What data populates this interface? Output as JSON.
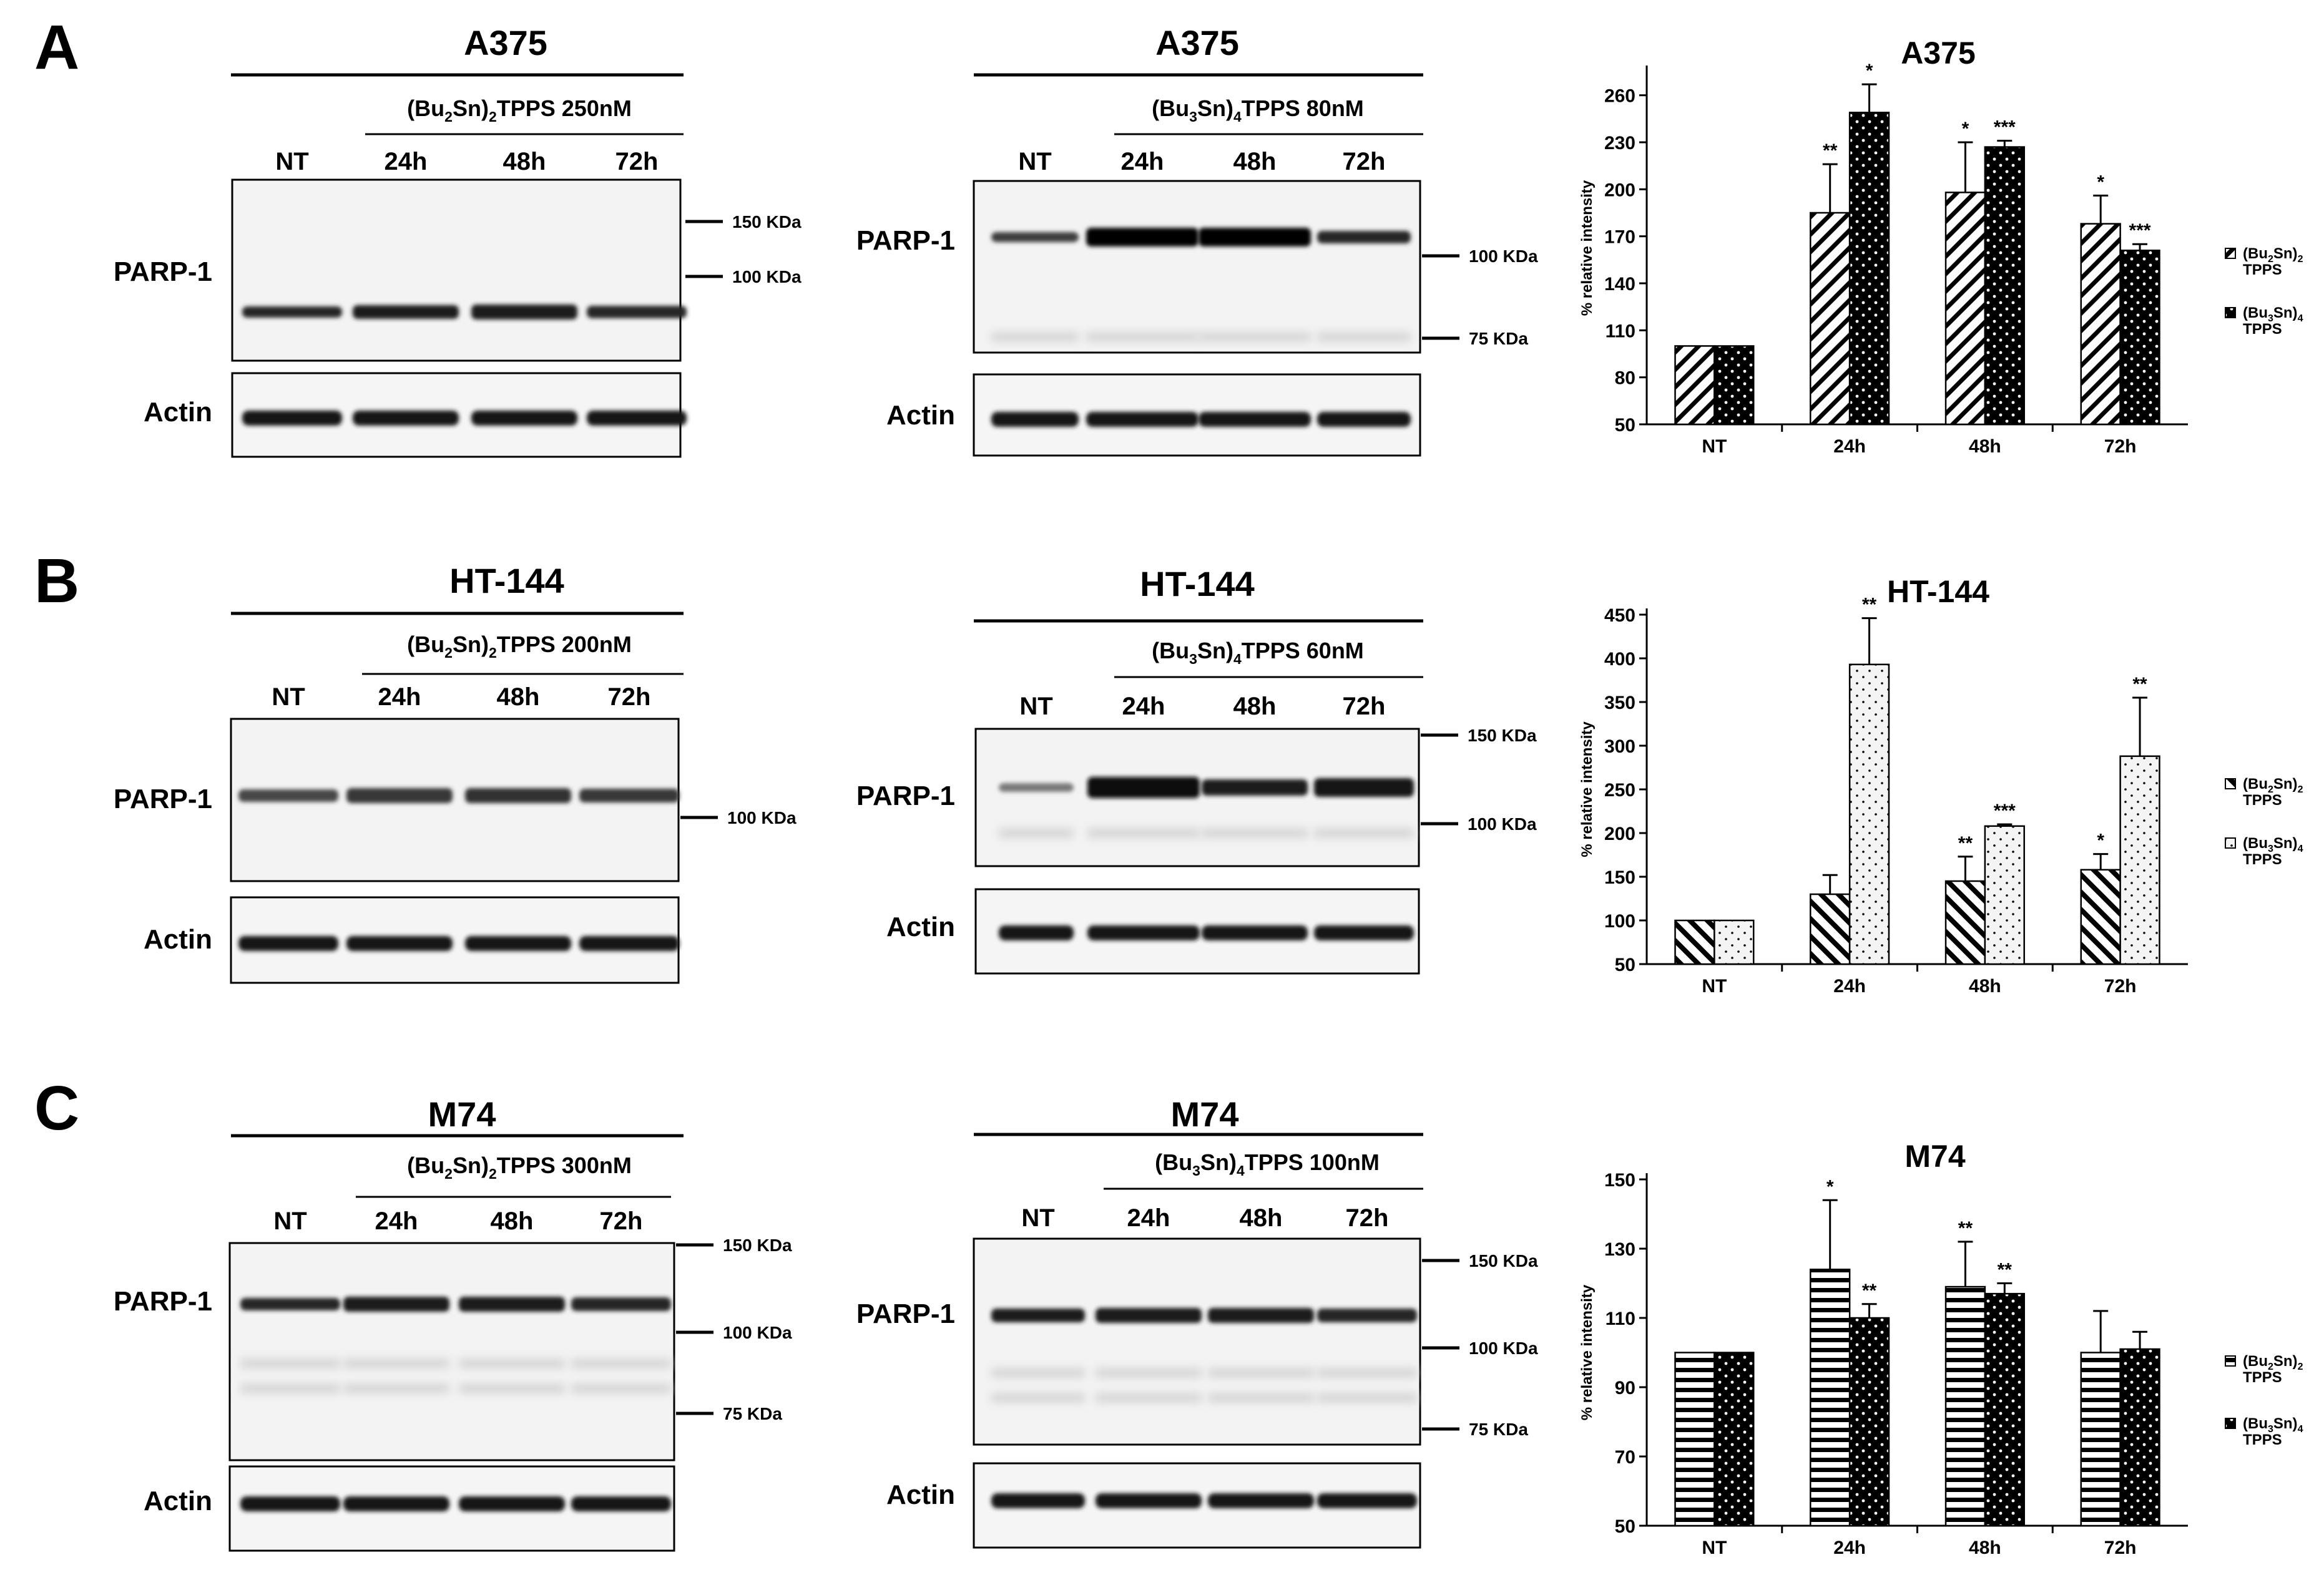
{
  "panel_letters": [
    "A",
    "B",
    "C"
  ],
  "kda": {
    "k150": "150 KDa",
    "k100": "100 KDa",
    "k75": "75 KDa"
  },
  "common": {
    "parp": "PARP-1",
    "actin": "Actin",
    "lanes": [
      "NT",
      "24h",
      "48h",
      "72h"
    ]
  },
  "blots": [
    {
      "title": "A375",
      "treatment_sub": [
        "(Bu",
        "2",
        "Sn)",
        "2",
        "TPPS 250nM"
      ]
    },
    {
      "title": "A375",
      "treatment_sub": [
        "(Bu",
        "3",
        "Sn)",
        "4",
        "TPPS 80nM"
      ]
    },
    {
      "title": "HT-144",
      "treatment_sub": [
        "(Bu",
        "2",
        "Sn)",
        "2",
        "TPPS 200nM"
      ]
    },
    {
      "title": "HT-144",
      "treatment_sub": [
        "(Bu",
        "3",
        "Sn)",
        "4",
        "TPPS 60nM"
      ]
    },
    {
      "title": "M74",
      "treatment_sub": [
        "(Bu",
        "2",
        "Sn)",
        "2",
        "TPPS 300nM"
      ]
    },
    {
      "title": "M74",
      "treatment_sub": [
        "(Bu",
        "3",
        "Sn)",
        "4",
        "TPPS 100nM"
      ]
    }
  ],
  "chart_data": [
    {
      "type": "bar",
      "title": "A375",
      "ylabel": "% relative intensity",
      "categories": [
        "NT",
        "24h",
        "48h",
        "72h"
      ],
      "ylim": [
        50,
        275
      ],
      "yticks": [
        50,
        80,
        110,
        140,
        170,
        200,
        230,
        260
      ],
      "series": [
        {
          "name": "(Bu2Sn)2 TPPS",
          "values": [
            100,
            185,
            198,
            178
          ],
          "errors": [
            0,
            31,
            32,
            18
          ],
          "sig": [
            "",
            "**",
            "*",
            "*"
          ],
          "pattern": "diag",
          "fill": "#000000"
        },
        {
          "name": "(Bu3Sn)4 TPPS",
          "values": [
            100,
            249,
            227,
            161
          ],
          "errors": [
            0,
            18,
            4,
            4
          ],
          "sig": [
            "",
            "*",
            "***",
            "***"
          ],
          "pattern": "dots",
          "fill": "#000000"
        }
      ],
      "legend": {
        "placement": "right",
        "entries": [
          [
            "(Bu",
            "2",
            "Sn)",
            "2",
            "TPPS"
          ],
          [
            "(Bu",
            "3",
            "Sn)",
            "4",
            "TPPS"
          ]
        ]
      }
    },
    {
      "type": "bar",
      "title": "HT-144",
      "ylabel": "% relative intensity",
      "categories": [
        "NT",
        "24h",
        "48h",
        "72h"
      ],
      "ylim": [
        50,
        450
      ],
      "yticks": [
        50,
        100,
        150,
        200,
        250,
        300,
        350,
        400,
        450
      ],
      "series": [
        {
          "name": "(Bu2Sn)2 TPPS",
          "values": [
            100,
            130,
            145,
            158
          ],
          "errors": [
            0,
            22,
            28,
            18
          ],
          "sig": [
            "",
            "",
            "**",
            "*"
          ],
          "pattern": "diag",
          "fill": "#000000"
        },
        {
          "name": "(Bu3Sn)4 TPPS",
          "values": [
            100,
            393,
            208,
            288
          ],
          "errors": [
            0,
            53,
            2,
            67
          ],
          "sig": [
            "",
            "**",
            "***",
            "**"
          ],
          "pattern": "dots",
          "fill": "#f2f2f2"
        }
      ],
      "legend": {
        "placement": "right",
        "entries": [
          [
            "(Bu",
            "2",
            "Sn)",
            "2",
            "TPPS"
          ],
          [
            "(Bu",
            "3",
            "Sn)",
            "4",
            "TPPS"
          ]
        ]
      }
    },
    {
      "type": "bar",
      "title": "M74",
      "ylabel": "% relative intensity",
      "categories": [
        "NT",
        "24h",
        "48h",
        "72h"
      ],
      "ylim": [
        50,
        150
      ],
      "yticks": [
        50,
        70,
        90,
        110,
        130,
        150
      ],
      "series": [
        {
          "name": "(Bu2Sn)2 TPPS",
          "values": [
            100,
            124,
            119,
            100
          ],
          "errors": [
            0,
            20,
            13,
            12
          ],
          "sig": [
            "",
            "*",
            "**",
            ""
          ],
          "pattern": "hstripe",
          "fill": "#000000"
        },
        {
          "name": "(Bu3Sn)4 TPPS",
          "values": [
            100,
            110,
            117,
            101
          ],
          "errors": [
            0,
            4,
            3,
            5
          ],
          "sig": [
            "",
            "**",
            "**",
            ""
          ],
          "pattern": "dots",
          "fill": "#000000"
        }
      ],
      "legend": {
        "placement": "right",
        "entries": [
          [
            "(Bu",
            "2",
            "Sn)",
            "2",
            "TPPS"
          ],
          [
            "(Bu",
            "3",
            "Sn)",
            "4",
            "TPPS"
          ]
        ]
      }
    }
  ]
}
